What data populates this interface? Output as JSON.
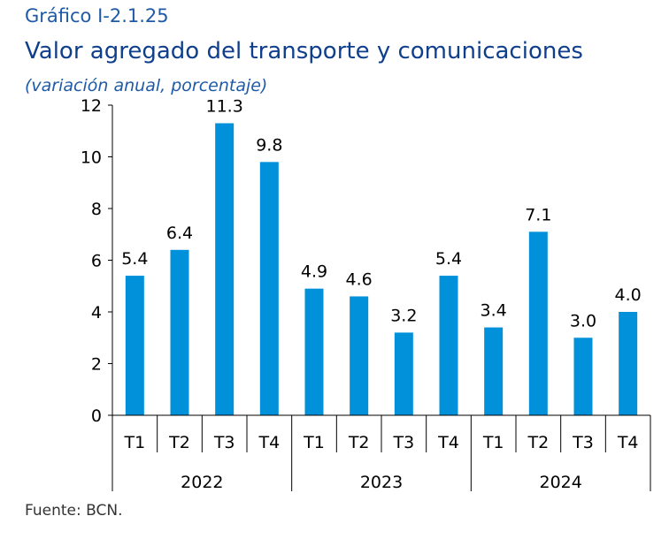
{
  "header": {
    "label": "Gráfico I-2.1.25",
    "title": "Valor agregado del transporte y comunicaciones",
    "subtitle": "(variación anual, porcentaje)"
  },
  "footer": {
    "source": "Fuente: BCN."
  },
  "colors": {
    "bar": "#0091da",
    "axis": "#000000"
  },
  "chart_data": {
    "type": "bar",
    "title": "Valor agregado del transporte y comunicaciones",
    "categories": [
      "T1",
      "T2",
      "T3",
      "T4",
      "T1",
      "T2",
      "T3",
      "T4",
      "T1",
      "T2",
      "T3",
      "T4"
    ],
    "groups": [
      {
        "label": "2022",
        "count": 4
      },
      {
        "label": "2023",
        "count": 4
      },
      {
        "label": "2024",
        "count": 4
      }
    ],
    "values": [
      5.4,
      6.4,
      11.3,
      9.8,
      4.9,
      4.6,
      3.2,
      5.4,
      3.4,
      7.1,
      3.0,
      4.0
    ],
    "value_labels": [
      "5.4",
      "6.4",
      "11.3",
      "9.8",
      "4.9",
      "4.6",
      "3.2",
      "5.4",
      "3.4",
      "7.1",
      "3.0",
      "4.0"
    ],
    "ylim": [
      0,
      12
    ],
    "yticks": [
      0,
      2,
      4,
      6,
      8,
      10,
      12
    ],
    "grid": false,
    "legend": "none"
  }
}
